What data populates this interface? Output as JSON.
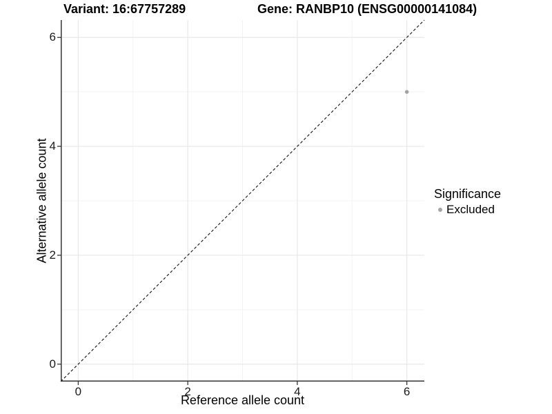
{
  "header": {
    "variant_label": "Variant: 16:67757289",
    "gene_label": "Gene: RANBP10 (ENSG00000141084)"
  },
  "chart_data": {
    "type": "scatter",
    "title": "Variant: 16:67757289 — Gene: RANBP10 (ENSG00000141084)",
    "xlabel": "Reference allele count",
    "ylabel": "Alternative allele count",
    "xlim": [
      -0.32,
      6.32
    ],
    "ylim": [
      -0.32,
      6.32
    ],
    "x_ticks": [
      0,
      2,
      4,
      6
    ],
    "y_ticks": [
      0,
      2,
      4,
      6
    ],
    "x_minor_ticks": [
      1,
      3,
      5
    ],
    "y_minor_ticks": [
      1,
      3,
      5
    ],
    "grid": "major and minor gridlines on white background",
    "colors": {
      "point": "#a4a4a4",
      "grid_major": "#e8e8e8",
      "grid_minor": "#f3f3f3",
      "axis_line": "#333333",
      "reference_line": "#111111"
    },
    "series": [
      {
        "name": "Excluded",
        "color": "#a4a4a4",
        "points": [
          {
            "x": 6,
            "y": 5
          }
        ]
      }
    ],
    "reference_line": {
      "kind": "identity y = x",
      "style": "dashed",
      "color": "#111111"
    },
    "legend": {
      "title": "Significance",
      "position": "right",
      "entries": [
        {
          "label": "Excluded",
          "color": "#a4a4a4"
        }
      ]
    }
  }
}
